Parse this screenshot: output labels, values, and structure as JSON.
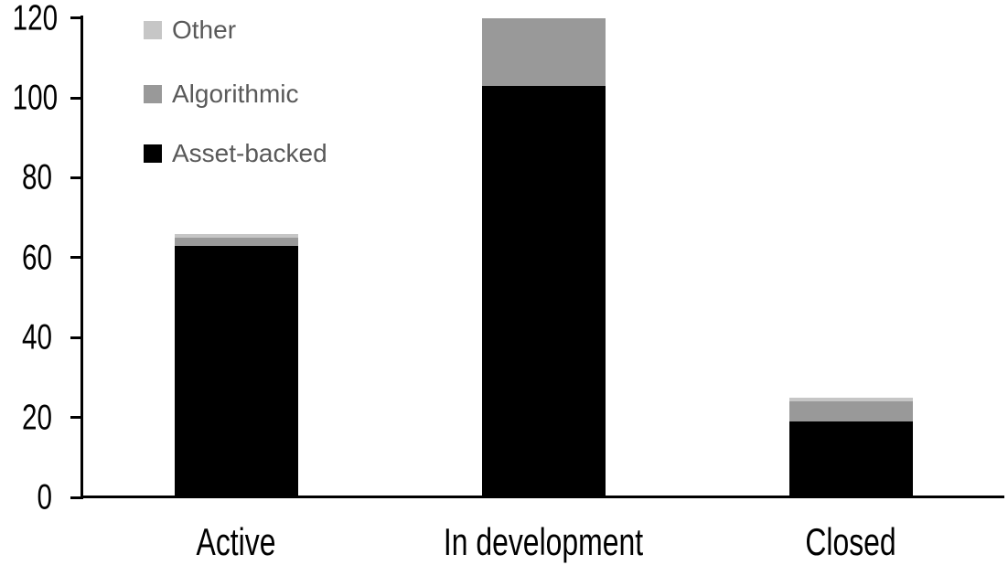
{
  "chart_data": {
    "type": "bar",
    "subtype": "stacked-column",
    "title": "",
    "xlabel": "",
    "ylabel": "",
    "categories": [
      "Active",
      "In development",
      "Closed"
    ],
    "series": [
      {
        "name": "Asset-backed",
        "color": "#000000",
        "values": [
          63,
          103,
          19
        ]
      },
      {
        "name": "Algorithmic",
        "color": "#999999",
        "values": [
          2,
          17,
          5
        ]
      },
      {
        "name": "Other",
        "color": "#c6c6c6",
        "values": [
          1,
          0,
          1
        ]
      }
    ],
    "totals": [
      66,
      120,
      25
    ],
    "ylim": [
      0,
      120
    ],
    "yticks": [
      0,
      20,
      40,
      60,
      80,
      100,
      120
    ],
    "grid": false,
    "legend": {
      "position": "top-left",
      "text_color": "#595959",
      "entries": [
        {
          "label": "Other",
          "color": "#c6c6c6"
        },
        {
          "label": "Algorithmic",
          "color": "#999999"
        },
        {
          "label": "Asset-backed",
          "color": "#000000"
        }
      ]
    },
    "axis_color": "#000000",
    "tick_label_color": "#000000"
  }
}
